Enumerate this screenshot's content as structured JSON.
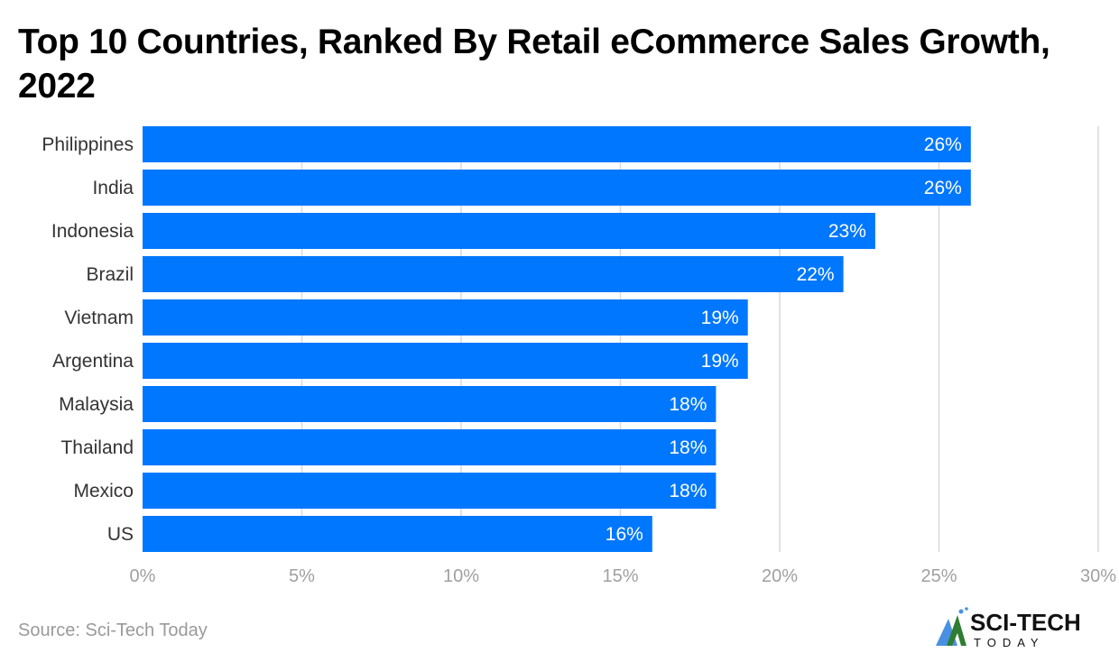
{
  "chart_data": {
    "type": "bar",
    "orientation": "horizontal",
    "title": "Top 10 Countries, Ranked By Retail eCommerce Sales Growth, 2022",
    "categories": [
      "Philippines",
      "India",
      "Indonesia",
      "Brazil",
      "Vietnam",
      "Argentina",
      "Malaysia",
      "Thailand",
      "Mexico",
      "US"
    ],
    "values": [
      26,
      26,
      23,
      22,
      19,
      19,
      18,
      18,
      18,
      16
    ],
    "data_labels": [
      "26%",
      "26%",
      "23%",
      "22%",
      "19%",
      "19%",
      "18%",
      "18%",
      "18%",
      "16%"
    ],
    "xlim": [
      0,
      30
    ],
    "x_ticks": [
      0,
      5,
      10,
      15,
      20,
      25,
      30
    ],
    "x_tick_labels": [
      "0%",
      "5%",
      "10%",
      "15%",
      "20%",
      "25%",
      "30%"
    ],
    "xlabel": "",
    "ylabel": "",
    "grid": "vertical",
    "bar_color": "#0077ff"
  },
  "footer": {
    "source": "Source: Sci-Tech Today",
    "logo_text": "SCI-TECH TODAY"
  }
}
